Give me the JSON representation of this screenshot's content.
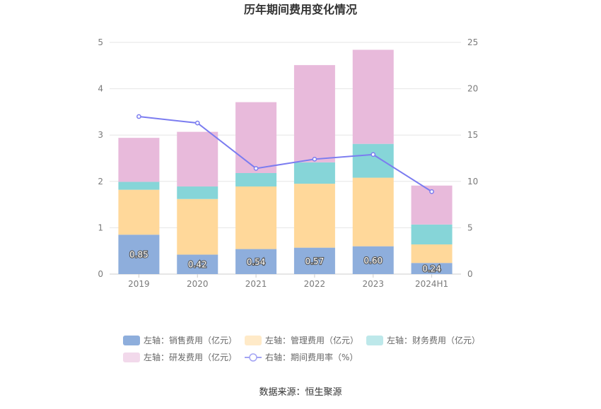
{
  "chart_data": {
    "type": "bar",
    "title": "历年期间费用变化情况",
    "categories": [
      "2019",
      "2020",
      "2021",
      "2022",
      "2023",
      "2024H1"
    ],
    "stacked": true,
    "left_axis": {
      "min": 0,
      "max": 5,
      "ticks": [
        "0",
        "1",
        "2",
        "3",
        "4",
        "5"
      ]
    },
    "right_axis": {
      "min": 0,
      "max": 25,
      "ticks": [
        "0",
        "5",
        "10",
        "15",
        "20",
        "25"
      ]
    },
    "series": [
      {
        "name": "左轴：销售费用（亿元）",
        "axis": "left",
        "color": "#8eaedc",
        "values": [
          0.85,
          0.42,
          0.54,
          0.57,
          0.6,
          0.24
        ],
        "labels": [
          "0.85",
          "0.42",
          "0.54",
          "0.57",
          "0.60",
          "0.24"
        ]
      },
      {
        "name": "左轴：管理费用（亿元）",
        "axis": "left",
        "color": "#ffd89a",
        "values": [
          0.97,
          1.2,
          1.35,
          1.38,
          1.48,
          0.4
        ]
      },
      {
        "name": "左轴：财务费用（亿元）",
        "axis": "left",
        "color": "#86d5d8",
        "values": [
          0.17,
          0.27,
          0.29,
          0.46,
          0.73,
          0.43
        ]
      },
      {
        "name": "左轴：研发费用（亿元）",
        "axis": "left",
        "color": "#e8badb",
        "values": [
          0.95,
          1.18,
          1.53,
          2.1,
          2.03,
          0.84
        ]
      },
      {
        "name": "右轴：期间费用率（%）",
        "axis": "right",
        "type": "line",
        "color": "#7b7cf0",
        "values": [
          17.0,
          16.3,
          11.4,
          12.4,
          12.9,
          8.9
        ]
      }
    ],
    "legend_position": "bottom",
    "grid": true
  },
  "source": "数据来源：恒生聚源"
}
